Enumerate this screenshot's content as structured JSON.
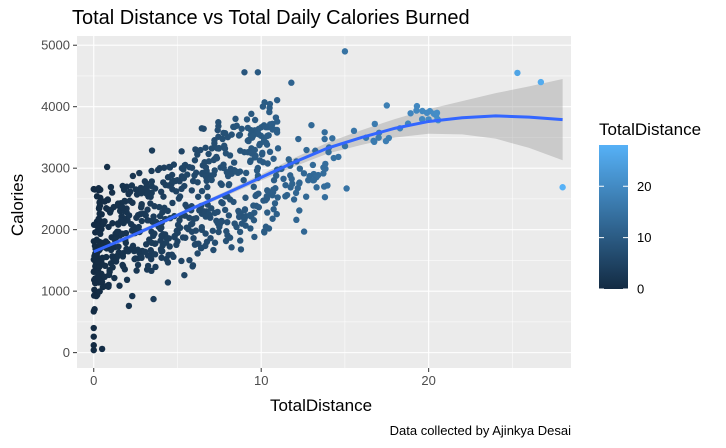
{
  "chart_data": {
    "type": "scatter",
    "title": "Total Distance vs Total Daily Calories Burned",
    "xlabel": "TotalDistance",
    "ylabel": "Calories",
    "caption": "Data collected by Ajinkya Desai",
    "xlim": [
      -1.0,
      28.5
    ],
    "ylim": [
      -250,
      5150
    ],
    "x_ticks": [
      0,
      10,
      20
    ],
    "y_ticks": [
      0,
      1000,
      2000,
      3000,
      4000,
      5000
    ],
    "grid": true,
    "legend": {
      "title": "TotalDistance",
      "position": "right",
      "ticks": [
        0,
        10,
        20
      ],
      "range": [
        0,
        28.03
      ],
      "low_color": "#132B43",
      "high_color": "#56B1F7"
    },
    "smooth_color": "#3366FF",
    "ribbon_color": "#999999",
    "panel_color": "#EBEBEB",
    "outliers": [
      {
        "x": 0.0,
        "y": 2660
      },
      {
        "x": 0.0,
        "y": 670
      },
      {
        "x": 0.0,
        "y": 400
      },
      {
        "x": 0.0,
        "y": 260
      },
      {
        "x": 0.0,
        "y": 120
      },
      {
        "x": 0.0,
        "y": 40
      },
      {
        "x": 0.5,
        "y": 60
      },
      {
        "x": 0.8,
        "y": 3020
      },
      {
        "x": 0.5,
        "y": 1150
      },
      {
        "x": 2.1,
        "y": 760
      },
      {
        "x": 2.3,
        "y": 920
      },
      {
        "x": 9.0,
        "y": 4560
      },
      {
        "x": 9.8,
        "y": 4560
      },
      {
        "x": 11.8,
        "y": 4390
      },
      {
        "x": 10.5,
        "y": 3980
      },
      {
        "x": 15.0,
        "y": 4900
      },
      {
        "x": 15.1,
        "y": 2670
      },
      {
        "x": 17.5,
        "y": 4020
      },
      {
        "x": 19.3,
        "y": 4010
      },
      {
        "x": 20.5,
        "y": 3900
      },
      {
        "x": 25.3,
        "y": 4550
      },
      {
        "x": 26.7,
        "y": 4400
      },
      {
        "x": 28.0,
        "y": 2690
      },
      {
        "x": 12.1,
        "y": 2160
      },
      {
        "x": 13.0,
        "y": 3700
      }
    ],
    "smooth": [
      {
        "x": 0,
        "y": 1640,
        "lo": 1590,
        "hi": 1690
      },
      {
        "x": 2,
        "y": 1870,
        "lo": 1830,
        "hi": 1910
      },
      {
        "x": 4,
        "y": 2110,
        "lo": 2080,
        "hi": 2140
      },
      {
        "x": 6,
        "y": 2360,
        "lo": 2330,
        "hi": 2390
      },
      {
        "x": 8,
        "y": 2600,
        "lo": 2560,
        "hi": 2640
      },
      {
        "x": 10,
        "y": 2850,
        "lo": 2800,
        "hi": 2900
      },
      {
        "x": 12,
        "y": 3100,
        "lo": 3030,
        "hi": 3170
      },
      {
        "x": 14,
        "y": 3330,
        "lo": 3240,
        "hi": 3420
      },
      {
        "x": 16,
        "y": 3500,
        "lo": 3380,
        "hi": 3620
      },
      {
        "x": 18,
        "y": 3650,
        "lo": 3500,
        "hi": 3800
      },
      {
        "x": 20,
        "y": 3760,
        "lo": 3560,
        "hi": 3960
      },
      {
        "x": 22,
        "y": 3820,
        "lo": 3550,
        "hi": 4090
      },
      {
        "x": 24,
        "y": 3850,
        "lo": 3480,
        "hi": 4220
      },
      {
        "x": 26,
        "y": 3830,
        "lo": 3330,
        "hi": 4330
      },
      {
        "x": 28,
        "y": 3790,
        "lo": 3130,
        "hi": 4450
      }
    ]
  }
}
